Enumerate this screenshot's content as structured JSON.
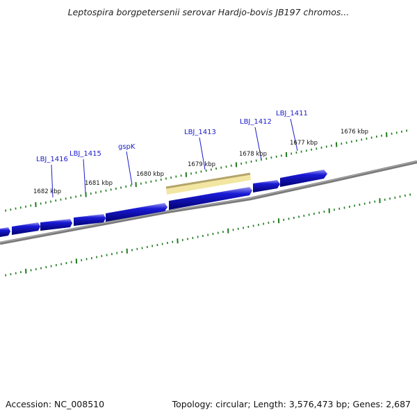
{
  "title": "Leptospira borgpetersenii serovar Hardjo-bovis JB197 chromos...",
  "footer": {
    "accession": "Accession: NC_008510",
    "summary": "Topology: circular; Length: 3,576,473 bp; Genes: 2,687"
  },
  "colors": {
    "gene": "#1a1ad6",
    "gene_highlight": "#9a9aee",
    "gene_shadow": "#00006e",
    "backbone": "#7a7a7a",
    "tick": "#1e7a1e",
    "selection": "#f2e6a2",
    "selection_edge": "#b4a46a",
    "label": "#1a1acd"
  },
  "major_ticks": [
    "1682 kbp",
    "1681 kbp",
    "1680 kbp",
    "1679 kbp",
    "1678 kbp",
    "1677 kbp",
    "1676 kbp"
  ],
  "gene_labels": [
    "LBJ_1416",
    "LBJ_1415",
    "gspK",
    "LBJ_1413",
    "LBJ_1412",
    "LBJ_1411"
  ]
}
